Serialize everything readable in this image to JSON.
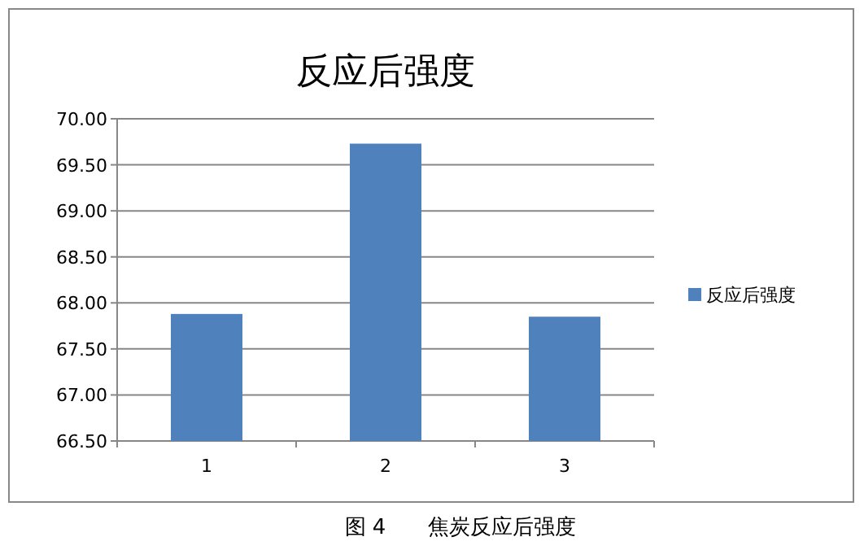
{
  "chart_data": {
    "type": "bar",
    "title": "反应后强度",
    "categories": [
      "1",
      "2",
      "3"
    ],
    "series": [
      {
        "name": "反应后强度",
        "color": "#4f81bd",
        "values": [
          67.88,
          69.73,
          67.85
        ]
      }
    ],
    "ylim": [
      66.5,
      70
    ],
    "yticks": [
      {
        "value": 66.5,
        "label": "66.50"
      },
      {
        "value": 67,
        "label": "67.00"
      },
      {
        "value": 67.5,
        "label": "67.50"
      },
      {
        "value": 68,
        "label": "68.00"
      },
      {
        "value": 68.5,
        "label": "68.50"
      },
      {
        "value": 69,
        "label": "69.00"
      },
      {
        "value": 69.5,
        "label": "69.50"
      },
      {
        "value": 70,
        "label": "70.00"
      }
    ],
    "grid": "y",
    "legend": "right",
    "annotations": [
      "图 4　　焦炭反应后强度"
    ]
  }
}
